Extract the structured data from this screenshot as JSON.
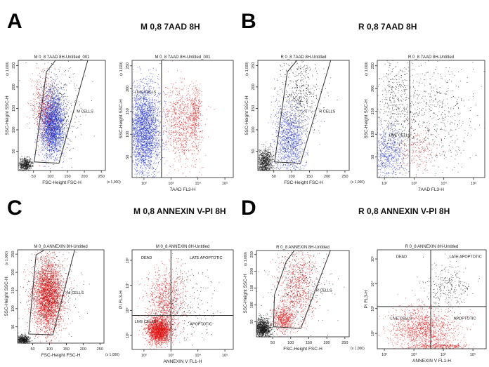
{
  "panels": [
    {
      "letter": "A",
      "heading": "M 0,8 7AAD 8H"
    },
    {
      "letter": "B",
      "heading": "R 0,8 7AAD 8H"
    },
    {
      "letter": "C",
      "heading": "M 0,8 ANNEXIN V-PI 8H"
    },
    {
      "letter": "D",
      "heading": "R 0,8 ANNEXIN V-PI 8H"
    }
  ],
  "colors": {
    "live": "#1f2fd0",
    "dead": "#d42020",
    "debris": "#111111",
    "annexin": "#e01818",
    "gate": "#333333"
  },
  "chart_data": [
    {
      "type": "scatter",
      "panel": "A",
      "title": "M 0_8 7AAD 8H-Untitled_001",
      "xlabel": "FSC-Height FSC-H",
      "ylabel": "SSC-Height SSC-H",
      "xscale_note": "(x 1,000)",
      "yscale_note": "(x 1,000)",
      "xlim": [
        5,
        262
      ],
      "ylim": [
        5,
        262
      ],
      "xticks": [
        "50",
        "100",
        "150",
        "200",
        "250"
      ],
      "yticks": [
        "50",
        "100",
        "150",
        "200",
        "250"
      ],
      "gate": {
        "label": "M CELLS",
        "points": [
          [
            52,
            25
          ],
          [
            88,
            235
          ],
          [
            115,
            262
          ],
          [
            210,
            262
          ],
          [
            125,
            22
          ]
        ]
      },
      "clusters": [
        {
          "x": 105,
          "y": 115,
          "sx": 18,
          "sy": 38,
          "n": 2600,
          "color": "live"
        },
        {
          "x": 80,
          "y": 150,
          "sx": 16,
          "sy": 40,
          "n": 500,
          "color": "dead"
        },
        {
          "x": 25,
          "y": 20,
          "sx": 10,
          "sy": 8,
          "n": 500,
          "color": "debris"
        },
        {
          "x": 120,
          "y": 150,
          "sx": 35,
          "sy": 55,
          "n": 400,
          "color": "debris"
        }
      ]
    },
    {
      "type": "scatter",
      "panel": "A",
      "title": "M 0_8 7AAD 8H-Untitled_001",
      "xlabel": "7AAD FL3-H",
      "ylabel": "SSC-Height SSC-H",
      "yscale_note": "(x 1,000)",
      "xlog": true,
      "xlim": [
        1.56,
        5.31
      ],
      "ylim": [
        5,
        262
      ],
      "xticks": [
        "10^2",
        "10^3",
        "10^4",
        "10^5"
      ],
      "yticks": [
        "50",
        "100",
        "150",
        "200",
        "250"
      ],
      "vline": 2.65,
      "labels": [
        {
          "text": "LIVE CELLS",
          "x": 1.65,
          "y": 190
        }
      ],
      "clusters": [
        {
          "x": 2.0,
          "y": 110,
          "sx": 0.3,
          "sy": 50,
          "n": 2800,
          "color": "live"
        },
        {
          "x": 3.4,
          "y": 120,
          "sx": 0.35,
          "sy": 45,
          "n": 900,
          "color": "dead"
        },
        {
          "x": 3.9,
          "y": 140,
          "sx": 0.1,
          "sy": 30,
          "n": 300,
          "color": "dead"
        }
      ]
    },
    {
      "type": "scatter",
      "panel": "B",
      "title": "R 0_8 7AAD 8H-Untitled",
      "xlabel": "FSC-Height FSC-H",
      "ylabel": "SSC-Height SSC-H",
      "xscale_note": "(x 1,000)",
      "yscale_note": "(x 1,000)",
      "xlim": [
        5,
        262
      ],
      "ylim": [
        5,
        262
      ],
      "xticks": [
        "50",
        "100",
        "150",
        "200",
        "250"
      ],
      "yticks": [
        "50",
        "100",
        "150",
        "200",
        "250"
      ],
      "gate": {
        "label": "R CELLS",
        "points": [
          [
            52,
            25
          ],
          [
            88,
            235
          ],
          [
            115,
            262
          ],
          [
            210,
            262
          ],
          [
            125,
            22
          ]
        ]
      },
      "clusters": [
        {
          "x": 95,
          "y": 80,
          "sx": 22,
          "sy": 45,
          "n": 1200,
          "color": "live"
        },
        {
          "x": 120,
          "y": 180,
          "sx": 30,
          "sy": 50,
          "n": 600,
          "color": "debris"
        },
        {
          "x": 25,
          "y": 25,
          "sx": 12,
          "sy": 15,
          "n": 800,
          "color": "debris"
        }
      ]
    },
    {
      "type": "scatter",
      "panel": "B",
      "title": "R 0_8 7AAD 8H-Untitled",
      "xlabel": "7AAD FL3-H",
      "ylabel": "SSC-Height SSC-H",
      "yscale_note": "(x 1,000)",
      "xlog": true,
      "xlim": [
        1.76,
        5.38
      ],
      "ylim": [
        5,
        262
      ],
      "xticks": [
        "10^2",
        "10^3",
        "10^4",
        "10^5"
      ],
      "yticks": [
        "50",
        "100",
        "150",
        "200",
        "250"
      ],
      "vline": 2.85,
      "labels": [
        {
          "text": "LIVE CELLS",
          "x": 2.15,
          "y": 95
        }
      ],
      "clusters": [
        {
          "x": 2.1,
          "y": 60,
          "sx": 0.3,
          "sy": 30,
          "n": 700,
          "color": "live"
        },
        {
          "x": 2.4,
          "y": 170,
          "sx": 0.35,
          "sy": 60,
          "n": 500,
          "color": "debris"
        },
        {
          "x": 3.6,
          "y": 140,
          "sx": 0.7,
          "sy": 70,
          "n": 600,
          "color": "debris"
        },
        {
          "x": 3.1,
          "y": 70,
          "sx": 0.3,
          "sy": 25,
          "n": 200,
          "color": "dead"
        }
      ]
    },
    {
      "type": "scatter",
      "panel": "C",
      "title": "M 0_8 ANNEXIN 8H-Untitled",
      "xlabel": "FSC-Height FSC-H",
      "ylabel": "SSC-Height SSC-H",
      "xscale_note": "(x 1,000)",
      "yscale_note": "(x 1,000)",
      "xlim": [
        5,
        262
      ],
      "ylim": [
        5,
        262
      ],
      "xticks": [
        "50",
        "100",
        "150",
        "200",
        "250"
      ],
      "yticks": [
        "50",
        "100",
        "150",
        "200",
        "250"
      ],
      "gate": {
        "label": "M CELLS",
        "points": [
          [
            38,
            30
          ],
          [
            60,
            248
          ],
          [
            85,
            262
          ],
          [
            175,
            262
          ],
          [
            110,
            28
          ]
        ]
      },
      "clusters": [
        {
          "x": 95,
          "y": 135,
          "sx": 22,
          "sy": 48,
          "n": 3200,
          "color": "annexin"
        },
        {
          "x": 20,
          "y": 15,
          "sx": 10,
          "sy": 6,
          "n": 500,
          "color": "debris"
        },
        {
          "x": 100,
          "y": 150,
          "sx": 40,
          "sy": 60,
          "n": 400,
          "color": "debris"
        }
      ]
    },
    {
      "type": "scatter",
      "panel": "C",
      "title": "M 0_8 ANNEXIN 8H-Untitled",
      "xlabel": "ANNEXIN V FL1-H",
      "ylabel": "PI FL3-H",
      "xlog": true,
      "ylog": true,
      "xlim": [
        1.56,
        5.31
      ],
      "ylim": [
        1.44,
        5.42
      ],
      "xticks": [
        "10^2",
        "10^3",
        "10^4",
        "10^5"
      ],
      "yticks": [
        "10^2",
        "10^3",
        "10^4",
        "10^5"
      ],
      "vline": 3.0,
      "hline": 2.8,
      "labels": [
        {
          "text": "DEAD",
          "x": 1.9,
          "y": 5.05
        },
        {
          "text": "LATE APOPTOTIC",
          "x": 3.7,
          "y": 5.05
        },
        {
          "text": "LIVE CELLS",
          "x": 1.65,
          "y": 2.5
        },
        {
          "text": "APOPTOTIC",
          "x": 3.7,
          "y": 2.4
        }
      ],
      "clusters": [
        {
          "x": 2.55,
          "y": 2.2,
          "sx": 0.22,
          "sy": 0.25,
          "n": 2200,
          "color": "annexin"
        },
        {
          "x": 2.8,
          "y": 3.4,
          "sx": 0.35,
          "sy": 0.6,
          "n": 900,
          "color": "annexin"
        },
        {
          "x": 3.4,
          "y": 3.2,
          "sx": 0.6,
          "sy": 0.8,
          "n": 300,
          "color": "debris"
        }
      ]
    },
    {
      "type": "scatter",
      "panel": "D",
      "title": "R 0_8 ANNEXIN 8H-Untitled",
      "xlabel": "FSC-Height FSC-H",
      "ylabel": "SSC-Height SSC-H",
      "xscale_note": "(x 1,000)",
      "yscale_note": "(x 1,000)",
      "xlim": [
        5,
        262
      ],
      "ylim": [
        5,
        262
      ],
      "xticks": [
        "50",
        "100",
        "150",
        "200",
        "250"
      ],
      "yticks": [
        "50",
        "100",
        "150",
        "200",
        "250"
      ],
      "gate": {
        "label": "R CELLS",
        "points": [
          [
            52,
            35
          ],
          [
            55,
            130
          ],
          [
            88,
            230
          ],
          [
            110,
            262
          ],
          [
            210,
            262
          ],
          [
            128,
            30
          ]
        ]
      },
      "clusters": [
        {
          "x": 80,
          "y": 60,
          "sx": 15,
          "sy": 20,
          "n": 600,
          "color": "annexin"
        },
        {
          "x": 120,
          "y": 160,
          "sx": 25,
          "sy": 55,
          "n": 800,
          "color": "annexin"
        },
        {
          "x": 22,
          "y": 30,
          "sx": 12,
          "sy": 15,
          "n": 1100,
          "color": "debris"
        },
        {
          "x": 120,
          "y": 160,
          "sx": 45,
          "sy": 60,
          "n": 300,
          "color": "debris"
        }
      ]
    },
    {
      "type": "scatter",
      "panel": "D",
      "title": "R 0_8 ANNEXIN 8H-Untitled",
      "xlabel": "ANNEXIN V FL1-H",
      "ylabel": "PI FL3-H",
      "xlog": true,
      "ylog": true,
      "xlim": [
        1.76,
        5.45
      ],
      "ylim": [
        1.38,
        5.37
      ],
      "xticks": [
        "10^2",
        "10^3",
        "10^4",
        "10^5"
      ],
      "yticks": [
        "10^2",
        "10^3",
        "10^4",
        "10^5"
      ],
      "vline": 3.57,
      "hline": 3.08,
      "labels": [
        {
          "text": "DEAD",
          "x": 2.4,
          "y": 5.05
        },
        {
          "text": "LATE APOPTOTIC",
          "x": 4.2,
          "y": 5.05
        },
        {
          "text": "LIVE CELLS",
          "x": 2.2,
          "y": 2.55
        },
        {
          "text": "APOPTOTIC",
          "x": 4.35,
          "y": 2.55
        },
        {
          "text": "",
          "x": 0,
          "y": 0
        }
      ],
      "clusters": [
        {
          "x": 3.3,
          "y": 2.2,
          "sx": 0.55,
          "sy": 0.4,
          "n": 1300,
          "color": "annexin"
        },
        {
          "x": 4.1,
          "y": 3.9,
          "sx": 0.4,
          "sy": 0.5,
          "n": 300,
          "color": "debris"
        },
        {
          "x": 3.8,
          "y": 1.5,
          "sx": 0.5,
          "sy": 0.06,
          "n": 300,
          "color": "annexin"
        }
      ]
    }
  ]
}
